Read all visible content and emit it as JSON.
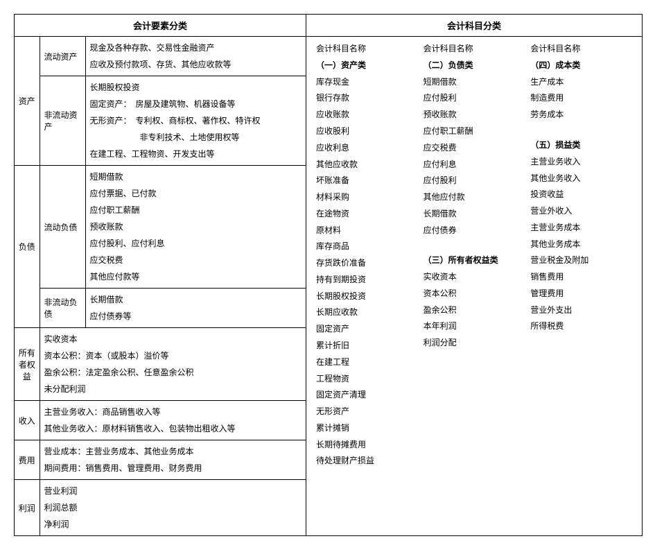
{
  "header_left": "会计要素分类",
  "header_right": "会计科目分类",
  "left": {
    "assets": {
      "label": "资产",
      "current": {
        "label": "流动资产",
        "lines": [
          "现金及各种存款、交易性金融资产",
          "应收及预付款项、存货、其他应收款等"
        ]
      },
      "noncurrent": {
        "label": "非流动资产",
        "lines": [
          "长期股权投资",
          "固定资产：　房屋及建筑物、机器设备等",
          "无形资产：　专利权、商标权、著作权、特许权",
          "　　　　　　非专利技术、土地使用权等",
          "在建工程、工程物资、开发支出等"
        ]
      }
    },
    "liab": {
      "label": "负债",
      "current": {
        "label": "流动负债",
        "lines": [
          "短期借款",
          "应付票据、已付款",
          "应付职工薪酬",
          "预收账款",
          "应付股利、应付利息",
          "应交税费",
          "其他应付款等"
        ]
      },
      "noncurrent": {
        "label": "非流动负债",
        "lines": [
          "长期借款",
          "应付债券等"
        ]
      }
    },
    "equity": {
      "label": "所有者权益",
      "lines": [
        "实收资本",
        "资本公积：资本（或股本）溢价等",
        "盈余公积：法定盈余公积、任意盈余公积",
        "未分配利润"
      ]
    },
    "income": {
      "label": "收入",
      "lines": [
        "主营业务收入：商品销售收入等",
        "其他业务收入：原材料销售收入、包装物出租收入等"
      ]
    },
    "expense": {
      "label": "费用",
      "lines": [
        "营业成本：主营业务成本、其他业务成本",
        "期间费用：销售费用、管理费用、财务费用"
      ]
    },
    "profit": {
      "label": "利润",
      "lines": [
        "营业利润",
        "利润总额",
        "净利润"
      ]
    }
  },
  "right": {
    "col1": {
      "head1": "会计科目名称",
      "head2": "（一）资产类",
      "items": [
        "库存现金",
        "银行存款",
        "应收账款",
        "应收股利",
        "应收利息",
        "其他应收款",
        "坏账准备",
        "材料采购",
        "在途物资",
        "原材料",
        "库存商品",
        "存货跌价准备",
        "持有到期投资",
        "长期股权投资",
        "长期应收款",
        "固定资产",
        "累计折旧",
        "在建工程",
        "工程物资",
        "固定资产清理",
        "无形资产",
        "累计摊销",
        "长期待摊费用",
        "待处理财产损益"
      ]
    },
    "col2": {
      "head1": "会计科目名称",
      "head2": "（二）负债类",
      "items_a": [
        "短期借款",
        "应付股利",
        "预收账款",
        "应付职工薪酬",
        "应交税费",
        "应付利息",
        "应付股利",
        "其他应付款",
        "长期借款",
        "应付债券"
      ],
      "head3": "（三）所有者权益类",
      "items_b": [
        "实收资本",
        "资本公积",
        "盈余公积",
        "本年利润",
        "利润分配"
      ]
    },
    "col3": {
      "head1": "会计科目名称",
      "head2": "（四）成本类",
      "items_a": [
        "生产成本",
        "制造费用",
        "劳务成本"
      ],
      "head3": "（五）损益类",
      "items_b": [
        "主营业务收入",
        "其他业务收入",
        "投资收益",
        "营业外收入",
        "主营业务成本",
        "其他业务成本",
        "营业税金及附加",
        "销售费用",
        "管理费用",
        "营业外支出",
        "所得税费"
      ]
    }
  }
}
